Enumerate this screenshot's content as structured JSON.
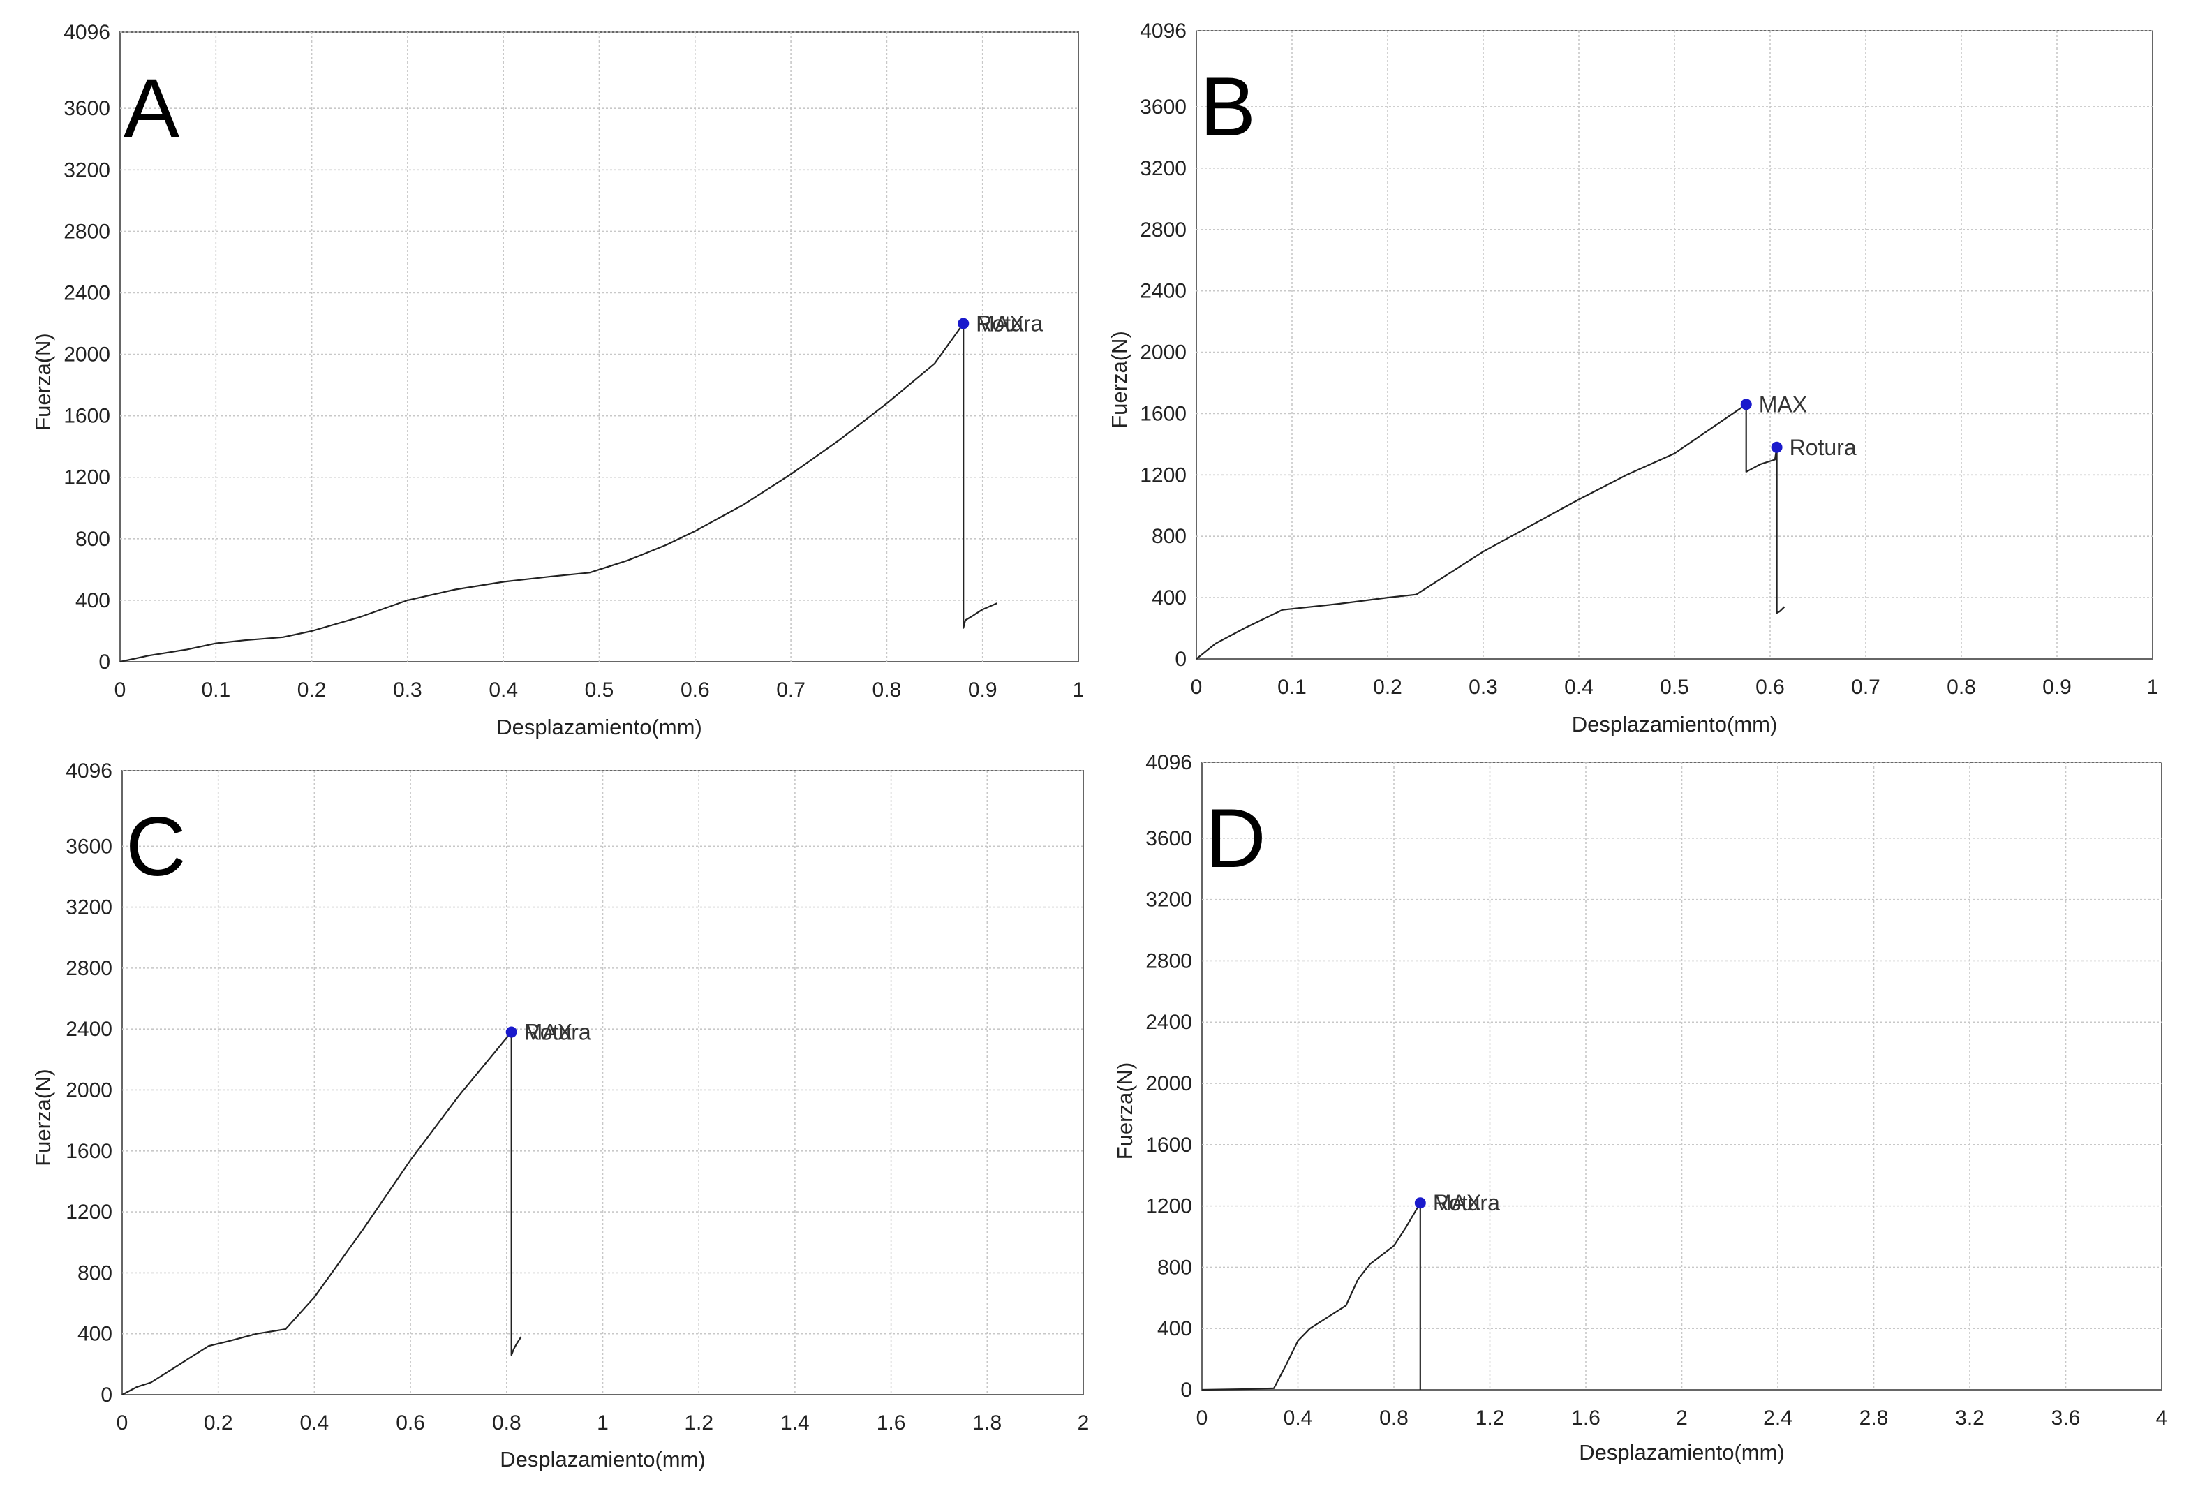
{
  "chart_data": [
    {
      "type": "line",
      "panel_label": "A",
      "xlabel": "Desplazamiento(mm)",
      "ylabel": "Fuerza(N)",
      "xlim": [
        0,
        1
      ],
      "ylim": [
        0,
        4096
      ],
      "xticks": [
        "0",
        "0.1",
        "0.2",
        "0.3",
        "0.4",
        "0.5",
        "0.6",
        "0.7",
        "0.8",
        "0.9",
        "1"
      ],
      "yticks": [
        "0",
        "400",
        "800",
        "1200",
        "1600",
        "2000",
        "2400",
        "2800",
        "3200",
        "3600",
        "4096"
      ],
      "grid": true,
      "series": [
        {
          "x": [
            0,
            0.03,
            0.07,
            0.1,
            0.13,
            0.17,
            0.2,
            0.25,
            0.3,
            0.35,
            0.4,
            0.45,
            0.49,
            0.53,
            0.57,
            0.6,
            0.65,
            0.7,
            0.75,
            0.8,
            0.85,
            0.88,
            0.88,
            0.882,
            0.89,
            0.9,
            0.915
          ],
          "y": [
            0,
            40,
            80,
            120,
            140,
            160,
            200,
            290,
            400,
            470,
            520,
            555,
            580,
            660,
            760,
            850,
            1020,
            1220,
            1440,
            1680,
            1940,
            2200,
            220,
            270,
            300,
            340,
            380
          ]
        }
      ],
      "annotations": [
        {
          "text": "MAX",
          "x": 0.88,
          "y": 2200
        },
        {
          "text": "Rotura",
          "x": 0.88,
          "y": 2200
        }
      ],
      "marker_color": "#1a1acc"
    },
    {
      "type": "line",
      "panel_label": "B",
      "xlabel": "Desplazamiento(mm)",
      "ylabel": "Fuerza(N)",
      "xlim": [
        0,
        1
      ],
      "ylim": [
        0,
        4096
      ],
      "xticks": [
        "0",
        "0.1",
        "0.2",
        "0.3",
        "0.4",
        "0.5",
        "0.6",
        "0.7",
        "0.8",
        "0.9",
        "1"
      ],
      "yticks": [
        "0",
        "400",
        "800",
        "1200",
        "1600",
        "2000",
        "2400",
        "2800",
        "3200",
        "3600",
        "4096"
      ],
      "grid": true,
      "series": [
        {
          "x": [
            0,
            0.02,
            0.05,
            0.09,
            0.15,
            0.2,
            0.23,
            0.3,
            0.4,
            0.45,
            0.5,
            0.575,
            0.575,
            0.578,
            0.59,
            0.605,
            0.607,
            0.607,
            0.61,
            0.615
          ],
          "y": [
            0,
            100,
            200,
            320,
            360,
            400,
            420,
            700,
            1040,
            1200,
            1340,
            1660,
            1220,
            1230,
            1270,
            1300,
            1380,
            300,
            310,
            340
          ]
        }
      ],
      "annotations": [
        {
          "text": "MAX",
          "x": 0.575,
          "y": 1660
        },
        {
          "text": "Rotura",
          "x": 0.607,
          "y": 1380
        }
      ],
      "marker_color": "#1a1acc"
    },
    {
      "type": "line",
      "panel_label": "C",
      "xlabel": "Desplazamiento(mm)",
      "ylabel": "Fuerza(N)",
      "xlim": [
        0,
        2
      ],
      "ylim": [
        0,
        4096
      ],
      "xticks": [
        "0",
        "0.2",
        "0.4",
        "0.6",
        "0.8",
        "1",
        "1.2",
        "1.4",
        "1.6",
        "1.8",
        "2"
      ],
      "yticks": [
        "0",
        "400",
        "800",
        "1200",
        "1600",
        "2000",
        "2400",
        "2800",
        "3200",
        "3600",
        "4096"
      ],
      "grid": true,
      "series": [
        {
          "x": [
            0,
            0.03,
            0.06,
            0.1,
            0.14,
            0.18,
            0.22,
            0.28,
            0.34,
            0.4,
            0.5,
            0.6,
            0.7,
            0.81,
            0.81,
            0.815,
            0.82,
            0.83
          ],
          "y": [
            0,
            50,
            80,
            160,
            240,
            320,
            350,
            400,
            430,
            640,
            1080,
            1540,
            1960,
            2380,
            260,
            300,
            330,
            380
          ]
        }
      ],
      "annotations": [
        {
          "text": "MAX",
          "x": 0.81,
          "y": 2380
        },
        {
          "text": "Rotura",
          "x": 0.81,
          "y": 2380
        }
      ],
      "marker_color": "#1a1acc"
    },
    {
      "type": "line",
      "panel_label": "D",
      "xlabel": "Desplazamiento(mm)",
      "ylabel": "Fuerza(N)",
      "xlim": [
        0,
        4
      ],
      "ylim": [
        0,
        4096
      ],
      "xticks": [
        "0",
        "0.4",
        "0.8",
        "1.2",
        "1.6",
        "2",
        "2.4",
        "2.8",
        "3.2",
        "3.6",
        "4"
      ],
      "yticks": [
        "0",
        "400",
        "800",
        "1200",
        "1600",
        "2000",
        "2400",
        "2800",
        "3200",
        "3600",
        "4096"
      ],
      "grid": true,
      "series": [
        {
          "x": [
            0,
            0.2,
            0.3,
            0.35,
            0.4,
            0.45,
            0.5,
            0.6,
            0.65,
            0.7,
            0.75,
            0.8,
            0.85,
            0.91,
            0.91
          ],
          "y": [
            0,
            5,
            10,
            160,
            320,
            400,
            450,
            550,
            720,
            820,
            880,
            940,
            1060,
            1220,
            0
          ]
        }
      ],
      "annotations": [
        {
          "text": "MAX",
          "x": 0.91,
          "y": 1220
        },
        {
          "text": "Rotura",
          "x": 0.91,
          "y": 1220
        }
      ],
      "marker_color": "#1a1acc"
    }
  ]
}
